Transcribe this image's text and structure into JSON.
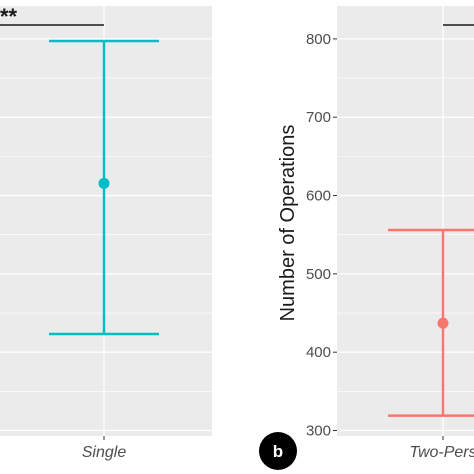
{
  "chart_data": [
    {
      "type": "scatter",
      "panel": "a",
      "categories": [
        "Single"
      ],
      "series": [
        {
          "point": 100,
          "ymin": 64,
          "ymax": 134,
          "color": "#00BFC4"
        }
      ],
      "significance": "**",
      "grid": true,
      "ylabel": ""
    },
    {
      "type": "scatter",
      "panel": "b",
      "badge": "b",
      "categories": [
        "Two-Pers"
      ],
      "series": [
        {
          "point": 437,
          "ymin": 319,
          "ymax": 556,
          "color": "#F8766D"
        }
      ],
      "ylabel": "Number of Operations",
      "yticks": [
        300,
        400,
        500,
        600,
        700,
        800
      ],
      "ylim": [
        293,
        842
      ],
      "grid": true
    }
  ],
  "colors": {
    "panel_bg": "#EBEBEB",
    "grid_major": "#FFFFFF",
    "badge_bg": "#000000"
  }
}
